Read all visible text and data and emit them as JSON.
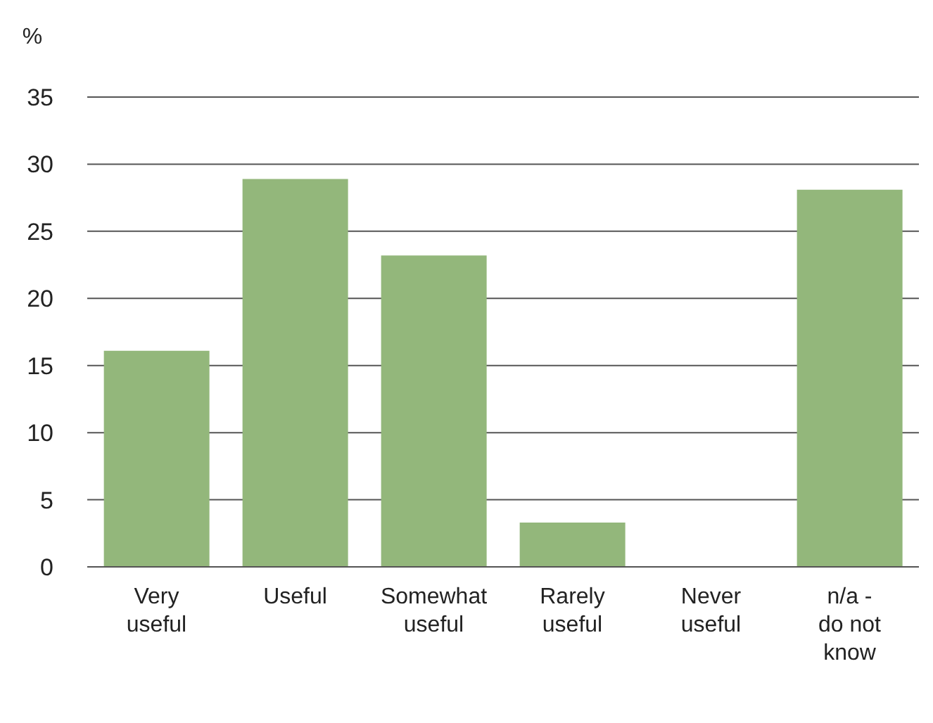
{
  "chart_data": {
    "type": "bar",
    "ylabel": "%",
    "categories": [
      "Very useful",
      "Useful",
      "Somewhat useful",
      "Rarely useful",
      "Never useful",
      "n/a - do not know"
    ],
    "values": [
      16.1,
      28.9,
      23.2,
      3.3,
      0,
      28.1
    ],
    "color": "#93b77b",
    "ylim": [
      0,
      35
    ],
    "yticks": [
      0,
      5,
      10,
      15,
      20,
      25,
      30,
      35
    ],
    "grid": "y"
  }
}
